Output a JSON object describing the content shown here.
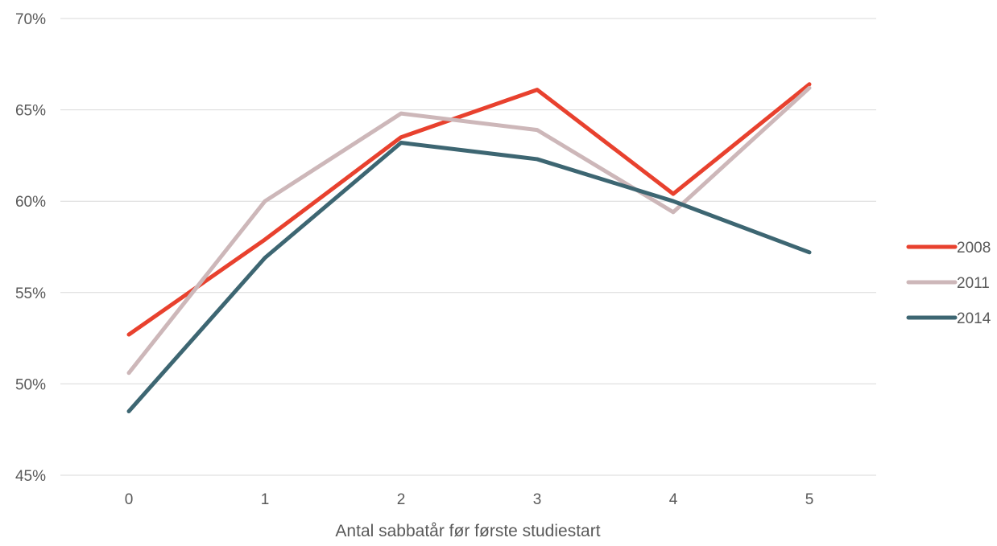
{
  "chart_data": {
    "type": "line",
    "title": "",
    "xlabel": "Antal sabbatår før første studiestart",
    "ylabel": "",
    "categories": [
      "0",
      "1",
      "2",
      "3",
      "4",
      "5"
    ],
    "y_ticks": [
      "45%",
      "50%",
      "55%",
      "60%",
      "65%",
      "70%"
    ],
    "ylim": [
      45,
      70
    ],
    "y_unit": "%",
    "grid": true,
    "legend_position": "right",
    "series": [
      {
        "name": "2008",
        "color": "#e8412e",
        "values": [
          52.7,
          57.9,
          63.5,
          66.1,
          60.4,
          66.4
        ]
      },
      {
        "name": "2011",
        "color": "#cdb7b9",
        "values": [
          50.6,
          60.0,
          64.8,
          63.9,
          59.4,
          66.2
        ]
      },
      {
        "name": "2014",
        "color": "#3d6672",
        "values": [
          48.5,
          56.9,
          63.2,
          62.3,
          60.0,
          57.2
        ]
      }
    ]
  }
}
